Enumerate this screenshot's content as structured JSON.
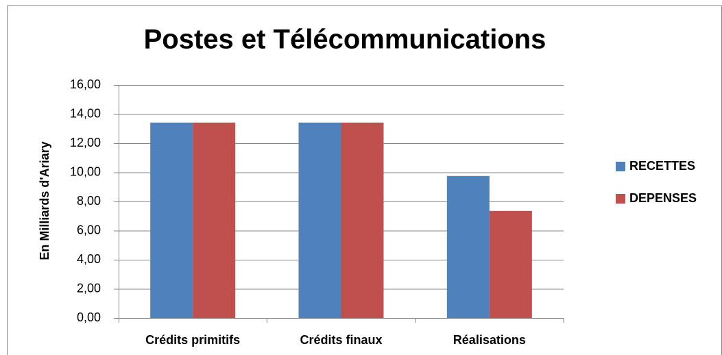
{
  "chart_data": {
    "type": "bar",
    "title": "Postes et Télécommunications",
    "y_label": "En Milliards d'Ariary",
    "categories": [
      "Crédits primitifs",
      "Crédits finaux",
      "Réalisations"
    ],
    "series": [
      {
        "name": "RECETTES",
        "color": "#4f81bd",
        "values": [
          13.42,
          13.42,
          9.75
        ]
      },
      {
        "name": "DEPENSES",
        "color": "#c0504d",
        "values": [
          13.42,
          13.42,
          7.35
        ]
      }
    ],
    "ylim": [
      0,
      16
    ],
    "yticks": [
      {
        "value": 0,
        "label": "0,00"
      },
      {
        "value": 2,
        "label": "2,00"
      },
      {
        "value": 4,
        "label": "4,00"
      },
      {
        "value": 6,
        "label": "6,00"
      },
      {
        "value": 8,
        "label": "8,00"
      },
      {
        "value": 10,
        "label": "10,00"
      },
      {
        "value": 12,
        "label": "12,00"
      },
      {
        "value": 14,
        "label": "14,00"
      },
      {
        "value": 16,
        "label": "16,00"
      }
    ],
    "grid": true,
    "legend": "right"
  }
}
